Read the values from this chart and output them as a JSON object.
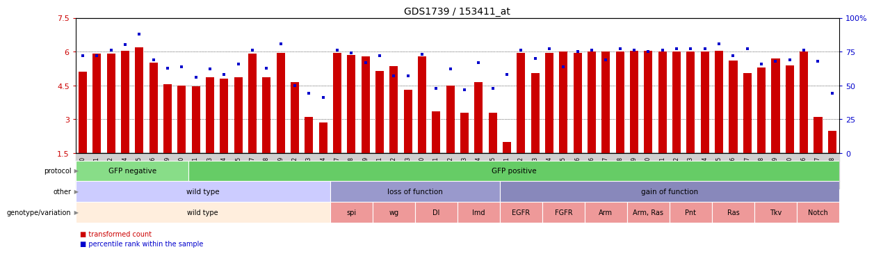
{
  "title": "GDS1739 / 153411_at",
  "xlabels": [
    "GSM88220",
    "GSM88221",
    "GSM88222",
    "GSM88244",
    "GSM88245",
    "GSM88246",
    "GSM88259",
    "GSM88260",
    "GSM88261",
    "GSM88223",
    "GSM88224",
    "GSM88225",
    "GSM88247",
    "GSM88248",
    "GSM88249",
    "GSM88262",
    "GSM88263",
    "GSM88264",
    "GSM88217",
    "GSM88218",
    "GSM88219",
    "GSM88241",
    "GSM88242",
    "GSM88243",
    "GSM88250",
    "GSM88251",
    "GSM88252",
    "GSM88253",
    "GSM88254",
    "GSM88255",
    "GSM88211",
    "GSM88212",
    "GSM88213",
    "GSM88214",
    "GSM88215",
    "GSM88216",
    "GSM88226",
    "GSM88227",
    "GSM88228",
    "GSM88229",
    "GSM88230",
    "GSM88231",
    "GSM88232",
    "GSM88233",
    "GSM88234",
    "GSM88235",
    "GSM88236",
    "GSM88237",
    "GSM88238",
    "GSM88239",
    "GSM88240",
    "GSM88256",
    "GSM88257",
    "GSM88258"
  ],
  "bar_values": [
    5.1,
    5.9,
    5.9,
    6.05,
    6.2,
    5.5,
    4.55,
    4.5,
    4.45,
    4.85,
    4.8,
    4.85,
    5.9,
    4.85,
    5.95,
    4.65,
    3.1,
    2.85,
    5.95,
    5.85,
    5.8,
    5.15,
    5.35,
    4.3,
    5.8,
    3.35,
    4.5,
    3.3,
    4.65,
    3.3,
    2.0,
    5.95,
    5.05,
    5.95,
    6.0,
    5.95,
    6.0,
    6.0,
    6.0,
    6.05,
    6.05,
    6.0,
    6.0,
    6.0,
    6.0,
    6.05,
    5.6,
    5.05,
    5.3,
    5.7,
    5.4,
    6.0,
    3.1,
    2.5
  ],
  "scatter_pct": [
    72,
    72,
    76,
    80,
    88,
    69,
    63,
    64,
    56,
    62,
    58,
    66,
    76,
    63,
    81,
    50,
    44,
    41,
    76,
    74,
    67,
    72,
    57,
    57,
    73,
    48,
    62,
    47,
    67,
    48,
    58,
    76,
    70,
    77,
    64,
    75,
    76,
    69,
    77,
    76,
    75,
    76,
    77,
    77,
    77,
    81,
    72,
    77,
    66,
    68,
    69,
    76,
    68,
    44
  ],
  "ylim": [
    1.5,
    7.5
  ],
  "yticks": [
    1.5,
    3.0,
    4.5,
    6.0,
    7.5
  ],
  "ytick_labels": [
    "1.5",
    "3",
    "4.5",
    "6",
    "7.5"
  ],
  "right_yticks": [
    0,
    25,
    50,
    75,
    100
  ],
  "right_ytick_labels": [
    "0",
    "25",
    "50",
    "75",
    "100%"
  ],
  "bar_color": "#cc0000",
  "scatter_color": "#0000cc",
  "background_color": "#ffffff",
  "xtick_bg": "#d0d0d0",
  "protocol_groups": [
    {
      "label": "GFP negative",
      "start": 0,
      "end": 8,
      "color": "#88dd88"
    },
    {
      "label": "GFP positive",
      "start": 8,
      "end": 54,
      "color": "#66cc66"
    }
  ],
  "other_groups": [
    {
      "label": "wild type",
      "start": 0,
      "end": 18,
      "color": "#ccccff"
    },
    {
      "label": "loss of function",
      "start": 18,
      "end": 30,
      "color": "#9999cc"
    },
    {
      "label": "gain of function",
      "start": 30,
      "end": 54,
      "color": "#8888bb"
    }
  ],
  "genotype_groups": [
    {
      "label": "wild type",
      "start": 0,
      "end": 18,
      "color": "#ffeedd"
    },
    {
      "label": "spi",
      "start": 18,
      "end": 21,
      "color": "#ee9999"
    },
    {
      "label": "wg",
      "start": 21,
      "end": 24,
      "color": "#ee9999"
    },
    {
      "label": "Dl",
      "start": 24,
      "end": 27,
      "color": "#ee9999"
    },
    {
      "label": "Imd",
      "start": 27,
      "end": 30,
      "color": "#ee9999"
    },
    {
      "label": "EGFR",
      "start": 30,
      "end": 33,
      "color": "#ee9999"
    },
    {
      "label": "FGFR",
      "start": 33,
      "end": 36,
      "color": "#ee9999"
    },
    {
      "label": "Arm",
      "start": 36,
      "end": 39,
      "color": "#ee9999"
    },
    {
      "label": "Arm, Ras",
      "start": 39,
      "end": 42,
      "color": "#ee9999"
    },
    {
      "label": "Pnt",
      "start": 42,
      "end": 45,
      "color": "#ee9999"
    },
    {
      "label": "Ras",
      "start": 45,
      "end": 48,
      "color": "#ee9999"
    },
    {
      "label": "Tkv",
      "start": 48,
      "end": 51,
      "color": "#ee9999"
    },
    {
      "label": "Notch",
      "start": 51,
      "end": 54,
      "color": "#ee9999"
    }
  ],
  "row_labels": [
    "protocol",
    "other",
    "genotype/variation"
  ],
  "legend_items": [
    {
      "label": "transformed count",
      "color": "#cc0000"
    },
    {
      "label": "percentile rank within the sample",
      "color": "#0000cc"
    }
  ]
}
